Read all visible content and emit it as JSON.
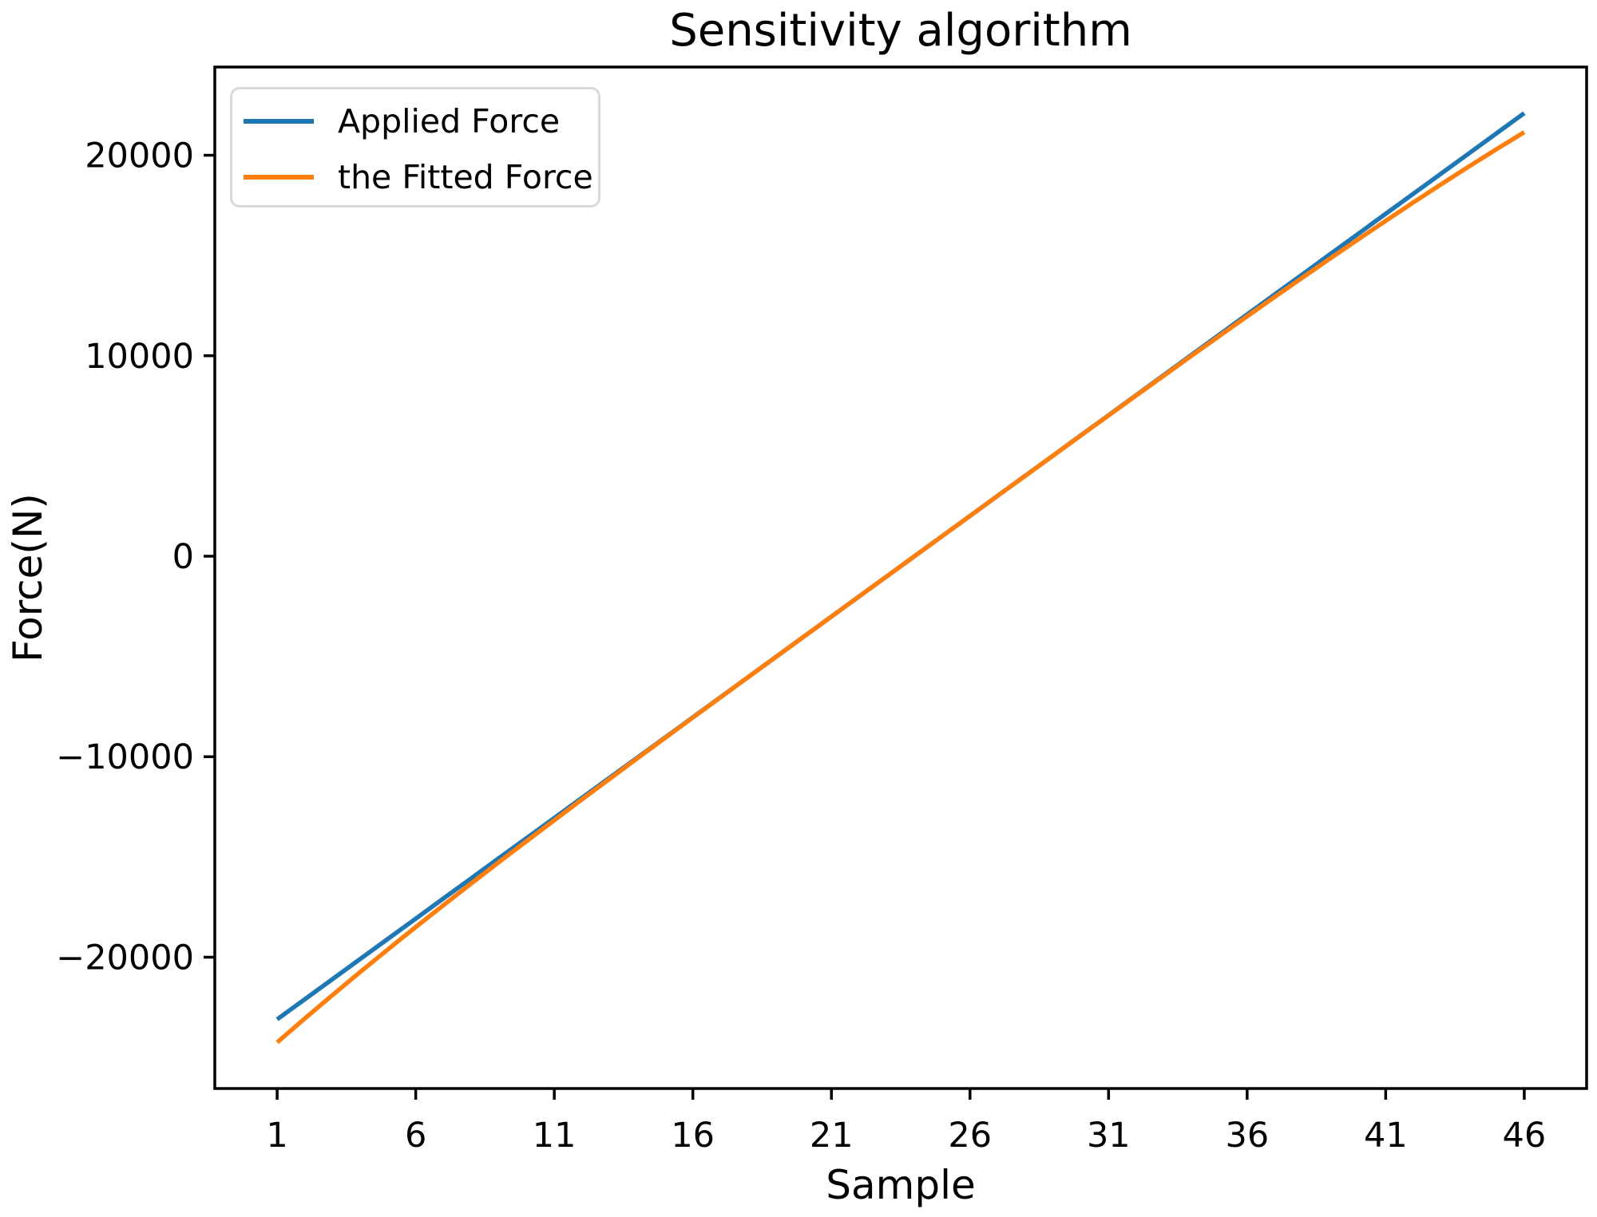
{
  "title": "Sensitivity algorithm",
  "chart_data": {
    "type": "line",
    "title": "Sensitivity algorithm",
    "xlabel": "Sample",
    "ylabel": "Force(N)",
    "xlim": [
      -1.25,
      48.25
    ],
    "ylim": [
      -26550,
      24400
    ],
    "grid": false,
    "legend": {
      "position": "upper left"
    },
    "x": [
      1,
      2,
      3,
      4,
      5,
      6,
      7,
      8,
      9,
      10,
      11,
      12,
      13,
      14,
      15,
      16,
      17,
      18,
      19,
      20,
      21,
      22,
      23,
      24,
      25,
      26,
      27,
      28,
      29,
      30,
      31,
      32,
      33,
      34,
      35,
      36,
      37,
      38,
      39,
      40,
      41,
      42,
      43,
      44,
      45,
      46
    ],
    "series": [
      {
        "name": "Applied Force",
        "color": "#1f77b4",
        "values": [
          -23100,
          -22096,
          -21091,
          -20087,
          -19082,
          -18078,
          -17073,
          -16069,
          -15064,
          -14060,
          -13056,
          -12051,
          -11047,
          -10042,
          -9038,
          -8033,
          -7029,
          -6024,
          -5020,
          -4016,
          -3011,
          -2007,
          -1002,
          2,
          1007,
          2011,
          3016,
          4020,
          5024,
          6029,
          7033,
          8038,
          9042,
          10047,
          11051,
          12056,
          13060,
          14064,
          15069,
          16073,
          17078,
          18082,
          19087,
          20091,
          21096,
          22100
        ]
      },
      {
        "name": "the Fitted Force",
        "color": "#ff7f0e",
        "values": [
          -24250,
          -23055,
          -21883,
          -20736,
          -19608,
          -18499,
          -17406,
          -16328,
          -15262,
          -14209,
          -13166,
          -12129,
          -11102,
          -10079,
          -9061,
          -8047,
          -7037,
          -6028,
          -5022,
          -4017,
          -3011,
          -2007,
          -1002,
          2,
          1007,
          2011,
          3015,
          4018,
          5021,
          6022,
          7021,
          8019,
          9012,
          10002,
          10986,
          11965,
          12937,
          13900,
          14855,
          15798,
          16730,
          17648,
          18551,
          19436,
          20304,
          21150
        ]
      }
    ],
    "xticks": [
      {
        "value": 1,
        "label": "1"
      },
      {
        "value": 6,
        "label": "6"
      },
      {
        "value": 11,
        "label": "11"
      },
      {
        "value": 16,
        "label": "16"
      },
      {
        "value": 21,
        "label": "21"
      },
      {
        "value": 26,
        "label": "26"
      },
      {
        "value": 31,
        "label": "31"
      },
      {
        "value": 36,
        "label": "36"
      },
      {
        "value": 41,
        "label": "41"
      },
      {
        "value": 46,
        "label": "46"
      }
    ],
    "yticks": [
      {
        "value": 20000,
        "label": "20000"
      },
      {
        "value": 10000,
        "label": "10000"
      },
      {
        "value": 0,
        "label": "0"
      },
      {
        "value": -10000,
        "label": "−10000"
      },
      {
        "value": -20000,
        "label": "−20000"
      }
    ]
  }
}
